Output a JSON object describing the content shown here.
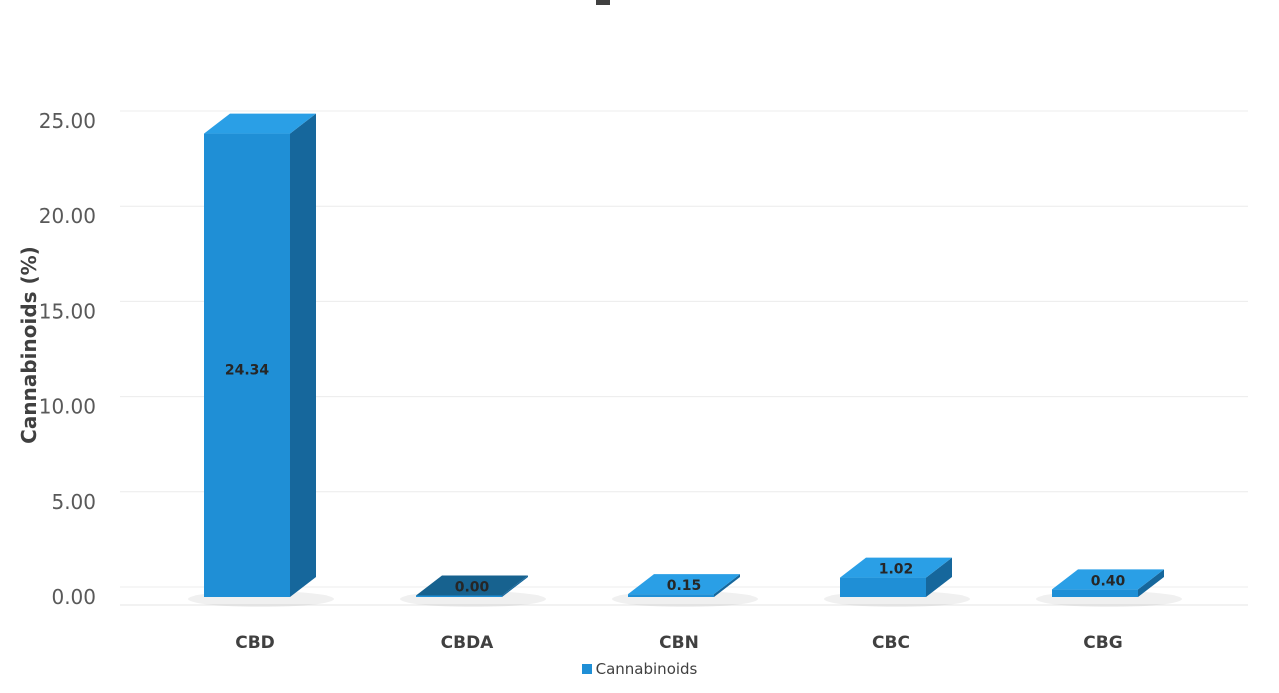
{
  "chart_data": {
    "type": "bar",
    "title": "",
    "xlabel": "",
    "ylabel": "Cannabinoids (%)",
    "categories": [
      "CBD",
      "CBDA",
      "CBN",
      "CBC",
      "CBG"
    ],
    "series": [
      {
        "name": "Cannabinoids",
        "values": [
          24.34,
          0.0,
          0.15,
          1.02,
          0.4
        ],
        "data_labels": [
          "24.34",
          "0.00",
          "0.15",
          "1.02",
          "0.40"
        ]
      }
    ],
    "ylim": [
      0,
      25
    ],
    "yticks": [
      "0.00",
      "5.00",
      "10.00",
      "15.00",
      "20.00",
      "25.00"
    ],
    "grid": true,
    "legend_position": "bottom",
    "style": "3d-column",
    "colors": {
      "bar_front": "#1f8fd6",
      "bar_side": "#16679c",
      "bar_top": "#2a9fe6",
      "dark_top": "#17628f",
      "grid": "#ececec"
    }
  },
  "legend": {
    "label": "Cannabinoids"
  }
}
